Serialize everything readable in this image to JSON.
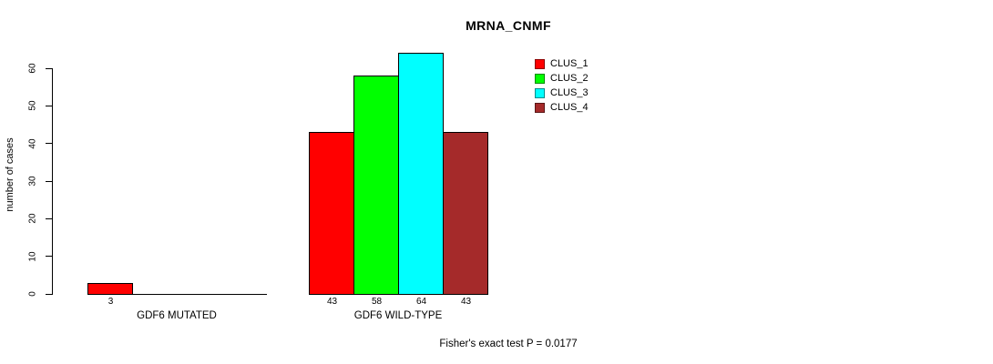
{
  "chart_data": {
    "type": "bar",
    "title": "MRNA_CNMF",
    "ylabel": "number of cases",
    "xlabel": "",
    "ylim": [
      0,
      60
    ],
    "yticks": [
      0,
      10,
      20,
      30,
      40,
      50,
      60
    ],
    "grid": false,
    "legend_position": "top-right",
    "series": [
      "CLUS_1",
      "CLUS_2",
      "CLUS_3",
      "CLUS_4"
    ],
    "colors": [
      "#FF0000",
      "#00FF00",
      "#00FFFF",
      "#A52A2A"
    ],
    "categories": [
      "GDF6 MUTATED",
      "GDF6 WILD-TYPE"
    ],
    "groups": [
      {
        "label": "GDF6 MUTATED",
        "values": [
          3,
          0,
          0,
          0
        ],
        "bar_labels": [
          "3",
          "",
          "",
          ""
        ]
      },
      {
        "label": "GDF6 WILD-TYPE",
        "values": [
          43,
          58,
          64,
          43
        ],
        "bar_labels": [
          "43",
          "58",
          "64",
          "43"
        ]
      }
    ],
    "legend": [
      {
        "label": "CLUS_1",
        "color": "#FF0000"
      },
      {
        "label": "CLUS_2",
        "color": "#00FF00"
      },
      {
        "label": "CLUS_3",
        "color": "#00FFFF"
      },
      {
        "label": "CLUS_4",
        "color": "#A52A2A"
      }
    ],
    "footnote": "Fisher's exact test P = 0.0177"
  }
}
